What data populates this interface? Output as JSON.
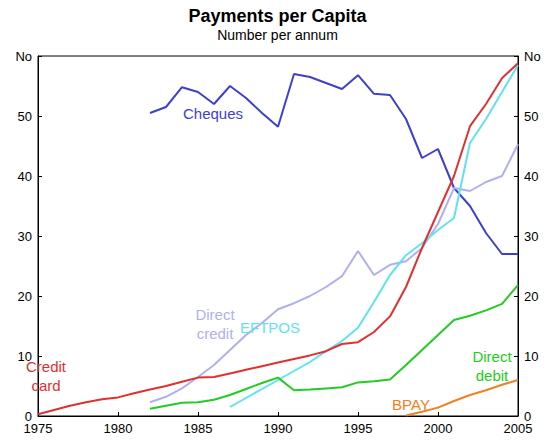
{
  "chart_data": {
    "type": "line",
    "title": "Payments per Capita",
    "subtitle": "Number per annum",
    "x": [
      1975,
      1976,
      1977,
      1978,
      1979,
      1980,
      1981,
      1982,
      1983,
      1984,
      1985,
      1986,
      1987,
      1988,
      1989,
      1990,
      1991,
      1992,
      1993,
      1994,
      1995,
      1996,
      1997,
      1998,
      1999,
      2000,
      2001,
      2002,
      2003,
      2004,
      2005
    ],
    "series": [
      {
        "name": "Cheques",
        "color": "#3f3fcf",
        "values": [
          null,
          null,
          null,
          null,
          null,
          null,
          null,
          50.5,
          51.5,
          54.8,
          54,
          52,
          55,
          53,
          50.5,
          48.2,
          57,
          56.5,
          55.5,
          54.5,
          56.8,
          53.7,
          53.5,
          49.5,
          43,
          44.5,
          38,
          35,
          30.5,
          27,
          27
        ]
      },
      {
        "name": "Direct credit",
        "color": "#b0b0ee",
        "values": [
          null,
          null,
          null,
          null,
          null,
          null,
          null,
          2.3,
          3.2,
          4.6,
          6.5,
          8.5,
          11,
          13.5,
          15.5,
          17.8,
          18.8,
          20,
          21.5,
          23.3,
          27.5,
          23.5,
          25.2,
          25.8,
          28,
          32,
          38,
          37.5,
          39,
          40,
          45.3
        ]
      },
      {
        "name": "EFTPOS",
        "color": "#5fe3f0",
        "values": [
          null,
          null,
          null,
          null,
          null,
          null,
          null,
          null,
          null,
          null,
          null,
          null,
          1.5,
          3,
          4.5,
          6,
          7.5,
          9,
          10.8,
          12.5,
          14.7,
          19,
          23.5,
          26.8,
          28.8,
          31,
          33,
          45.5,
          49.5,
          54,
          58.5
        ]
      },
      {
        "name": "Credit card",
        "color": "#e03030",
        "values": [
          0.3,
          1,
          1.7,
          2.3,
          2.8,
          3.1,
          3.8,
          4.4,
          5,
          5.7,
          6.4,
          6.5,
          7.1,
          7.7,
          8.3,
          8.9,
          9.5,
          10.1,
          10.8,
          12,
          12.3,
          14,
          16.6,
          21.5,
          28,
          34,
          40,
          48.3,
          52,
          56.3,
          58.8
        ]
      },
      {
        "name": "Direct debit",
        "color": "#22cc22",
        "values": [
          null,
          null,
          null,
          null,
          null,
          null,
          null,
          1.2,
          1.7,
          2.2,
          2.3,
          2.7,
          3.5,
          4.5,
          5.5,
          6.4,
          4.3,
          4.4,
          4.6,
          4.8,
          5.6,
          5.8,
          6.1,
          8.5,
          11,
          13.5,
          16,
          16.7,
          17.6,
          18.7,
          21.8
        ]
      },
      {
        "name": "BPAY",
        "color": "#f08020",
        "values": [
          null,
          null,
          null,
          null,
          null,
          null,
          null,
          null,
          null,
          null,
          null,
          null,
          null,
          null,
          null,
          null,
          null,
          null,
          null,
          null,
          null,
          null,
          null,
          0.1,
          0.7,
          1.4,
          2.5,
          3.5,
          4.3,
          5.2,
          6
        ]
      }
    ],
    "xlim": [
      1975,
      2005
    ],
    "xticks": [
      1975,
      1980,
      1985,
      1990,
      1995,
      2000,
      2005
    ],
    "ylim": [
      0,
      60
    ],
    "yticks": [
      0,
      10,
      20,
      30,
      40,
      50,
      {
        "value": 60,
        "label": "No"
      }
    ],
    "grid": false
  }
}
